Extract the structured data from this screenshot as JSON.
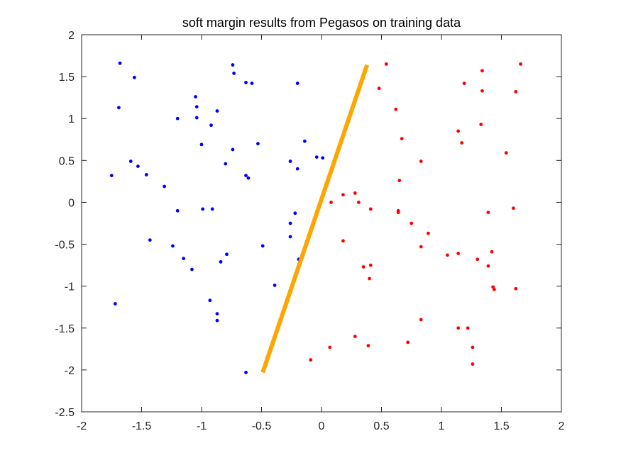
{
  "chart_data": {
    "type": "scatter",
    "title": "soft margin results from Pegasos on training data",
    "xlabel": "",
    "ylabel": "",
    "xlim": [
      -2,
      2
    ],
    "ylim": [
      -2.5,
      2
    ],
    "xticks": [
      -2,
      -1.5,
      -1,
      -0.5,
      0,
      0.5,
      1,
      1.5,
      2
    ],
    "yticks": [
      -2.5,
      -2,
      -1.5,
      -1,
      -0.5,
      0,
      0.5,
      1,
      1.5,
      2
    ],
    "grid": false,
    "colors": {
      "blue": "#0000ff",
      "red": "#ff0000",
      "line": "#ffa500"
    },
    "series": [
      {
        "color": "#0000ff",
        "points": [
          [
            -1.75,
            0.32
          ],
          [
            -1.68,
            1.66
          ],
          [
            -1.69,
            1.13
          ],
          [
            -1.56,
            1.49
          ],
          [
            -1.59,
            0.49
          ],
          [
            -1.53,
            0.43
          ],
          [
            -1.46,
            0.33
          ],
          [
            -1.31,
            0.19
          ],
          [
            -1.43,
            -0.45
          ],
          [
            -1.2,
            1.0
          ],
          [
            -1.2,
            -0.1
          ],
          [
            -1.24,
            -0.52
          ],
          [
            -1.15,
            -0.67
          ],
          [
            -1.08,
            -0.8
          ],
          [
            -1.72,
            -1.21
          ],
          [
            -1.05,
            1.26
          ],
          [
            -1.04,
            1.14
          ],
          [
            -1.04,
            1.01
          ],
          [
            -1.0,
            0.69
          ],
          [
            -0.99,
            -0.08
          ],
          [
            -0.92,
            0.92
          ],
          [
            -0.91,
            -0.08
          ],
          [
            -0.87,
            1.09
          ],
          [
            -0.8,
            0.46
          ],
          [
            -0.74,
            0.63
          ],
          [
            -0.79,
            -0.62
          ],
          [
            -0.84,
            -0.71
          ],
          [
            -0.93,
            -1.17
          ],
          [
            -0.87,
            -1.33
          ],
          [
            -0.87,
            -1.41
          ],
          [
            -0.74,
            1.64
          ],
          [
            -0.73,
            1.54
          ],
          [
            -0.63,
            1.43
          ],
          [
            -0.58,
            1.42
          ],
          [
            -0.63,
            0.32
          ],
          [
            -0.61,
            0.29
          ],
          [
            -0.53,
            0.7
          ],
          [
            -0.49,
            -0.52
          ],
          [
            -0.39,
            -0.99
          ],
          [
            -0.63,
            -2.03
          ],
          [
            -0.2,
            1.42
          ],
          [
            -0.26,
            0.49
          ],
          [
            -0.2,
            0.4
          ],
          [
            -0.14,
            0.73
          ],
          [
            -0.04,
            0.54
          ],
          [
            0.01,
            0.53
          ],
          [
            -0.22,
            -0.13
          ],
          [
            -0.26,
            -0.25
          ],
          [
            -0.26,
            -0.41
          ],
          [
            -0.19,
            -0.68
          ]
        ]
      },
      {
        "color": "#ff0000",
        "points": [
          [
            0.54,
            1.65
          ],
          [
            0.48,
            1.36
          ],
          [
            0.62,
            1.11
          ],
          [
            0.67,
            0.76
          ],
          [
            0.65,
            0.26
          ],
          [
            0.64,
            -0.1
          ],
          [
            0.64,
            -0.12
          ],
          [
            0.83,
            0.49
          ],
          [
            0.75,
            -0.25
          ],
          [
            0.89,
            -0.37
          ],
          [
            0.83,
            -0.53
          ],
          [
            0.08,
            0.0
          ],
          [
            0.18,
            0.09
          ],
          [
            0.28,
            0.11
          ],
          [
            0.31,
            0.0
          ],
          [
            0.41,
            -0.08
          ],
          [
            0.18,
            -0.46
          ],
          [
            0.35,
            -0.77
          ],
          [
            0.41,
            -0.75
          ],
          [
            0.4,
            -0.91
          ],
          [
            -0.09,
            -1.88
          ],
          [
            0.07,
            -1.73
          ],
          [
            0.28,
            -1.6
          ],
          [
            0.39,
            -1.71
          ],
          [
            0.72,
            -1.67
          ],
          [
            0.83,
            -1.4
          ],
          [
            1.19,
            1.42
          ],
          [
            1.34,
            1.57
          ],
          [
            1.34,
            1.33
          ],
          [
            1.62,
            1.32
          ],
          [
            1.66,
            1.65
          ],
          [
            1.14,
            0.85
          ],
          [
            1.17,
            0.71
          ],
          [
            1.33,
            0.93
          ],
          [
            1.54,
            0.59
          ],
          [
            1.39,
            -0.12
          ],
          [
            1.6,
            -0.07
          ],
          [
            1.05,
            -0.63
          ],
          [
            1.14,
            -0.61
          ],
          [
            1.3,
            -0.68
          ],
          [
            1.42,
            -0.59
          ],
          [
            1.39,
            -0.76
          ],
          [
            1.43,
            -1.01
          ],
          [
            1.44,
            -1.04
          ],
          [
            1.62,
            -1.03
          ],
          [
            1.14,
            -1.5
          ],
          [
            1.22,
            -1.5
          ],
          [
            1.26,
            -1.73
          ],
          [
            1.26,
            -1.93
          ]
        ]
      }
    ],
    "line": {
      "color": "#ffa500",
      "points": [
        [
          -0.49,
          -2.03
        ],
        [
          0.38,
          1.64
        ]
      ]
    }
  }
}
